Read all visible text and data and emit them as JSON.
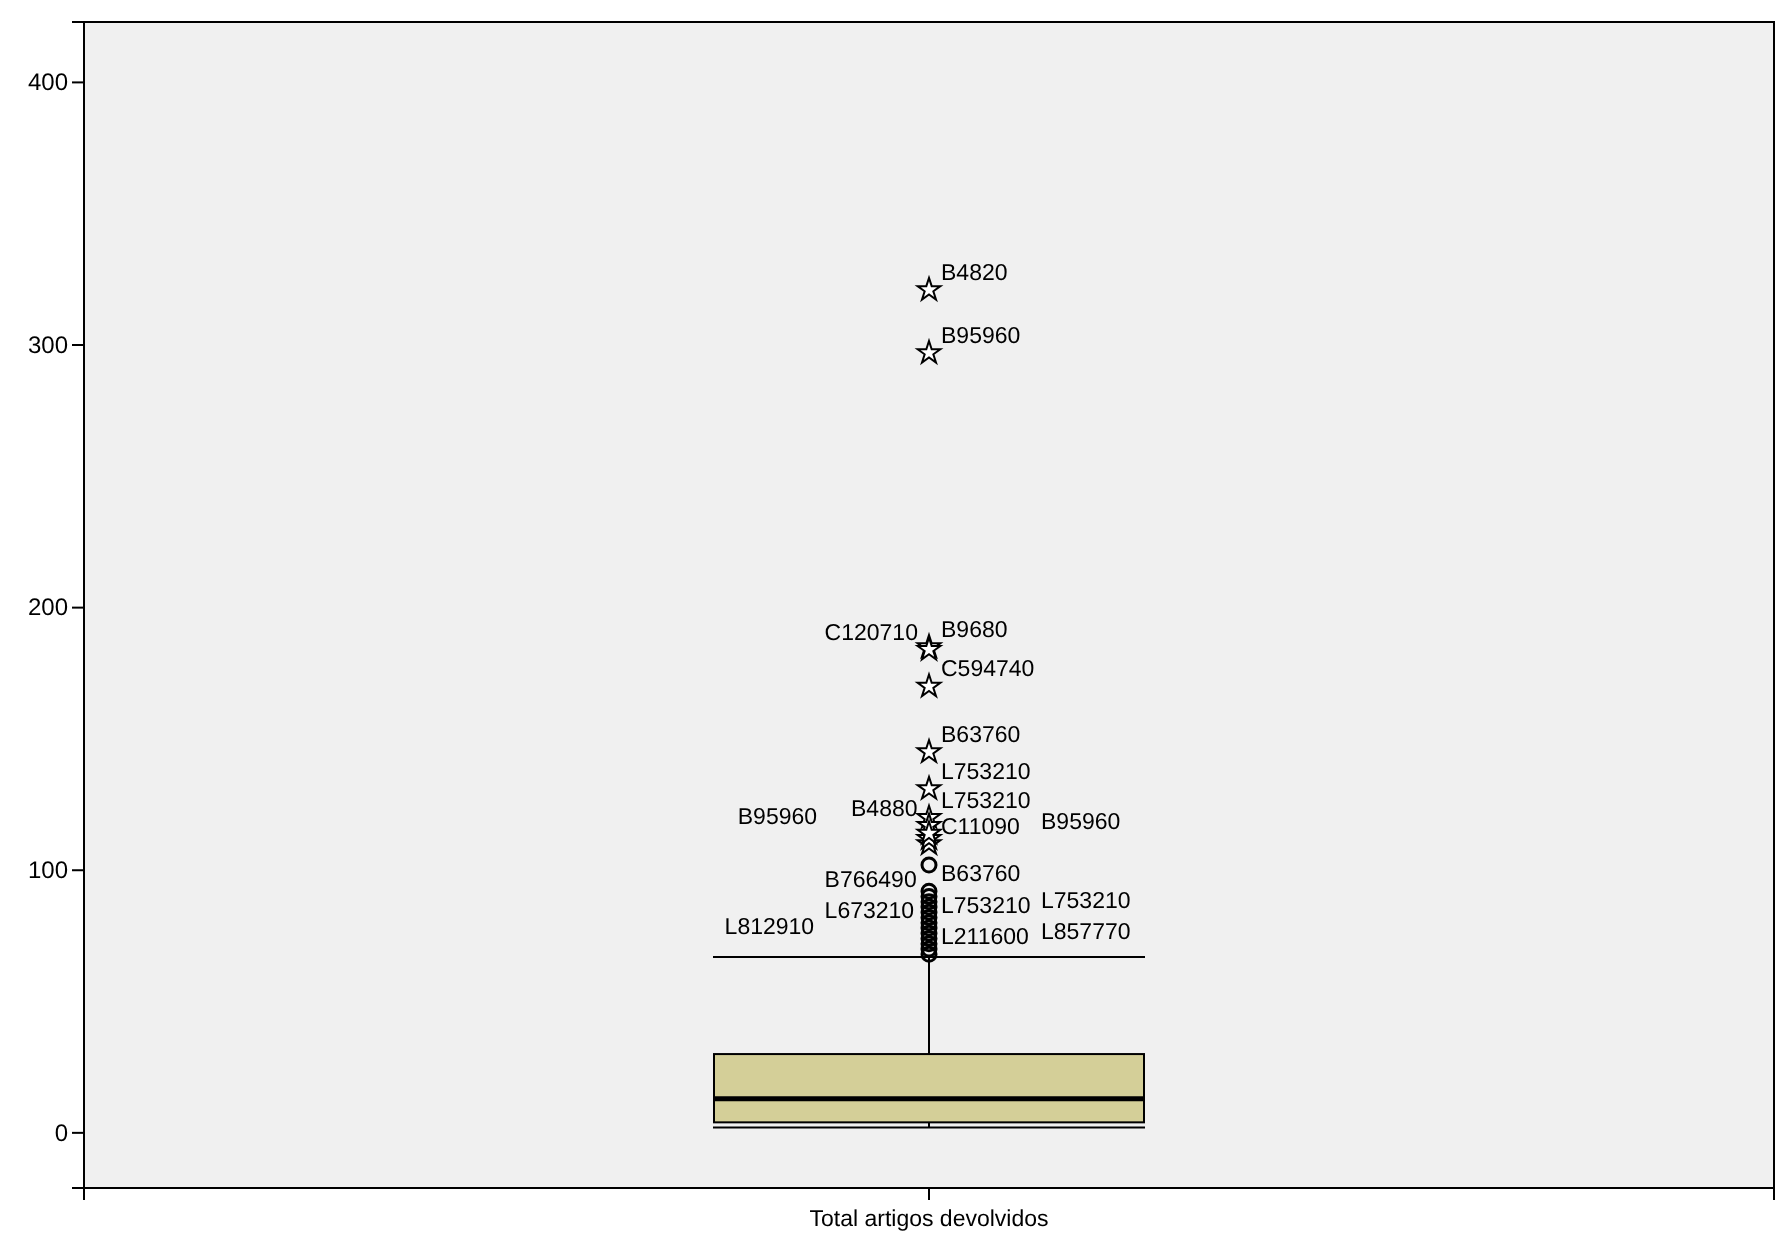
{
  "chart_data": {
    "type": "box",
    "categories": [
      "Total artigos devolvidos"
    ],
    "color": "#d4cf98",
    "boxes": [
      {
        "low": 2,
        "q1": 4,
        "median": 13,
        "q3": 30,
        "high": 67,
        "outliers": [
          321,
          297,
          185,
          170,
          184,
          145,
          131,
          120,
          117,
          110,
          112,
          114,
          92,
          90,
          80,
          78,
          82,
          68,
          70,
          72,
          102,
          88,
          86,
          84,
          76,
          74
        ]
      }
    ],
    "ylim": [
      -21,
      423
    ],
    "yticks": [
      0,
      100,
      200,
      300,
      400
    ],
    "annotations": [
      "B4820",
      "B95960",
      "B9680",
      "C594740",
      "C120710",
      "B63760",
      "L753210",
      "L753210",
      "B4880",
      "C11090",
      "B95960",
      "B95960",
      "B63760",
      "B766490",
      "L753210",
      "L673210",
      "L753210",
      "L211600",
      "L857770",
      "L812910"
    ]
  }
}
